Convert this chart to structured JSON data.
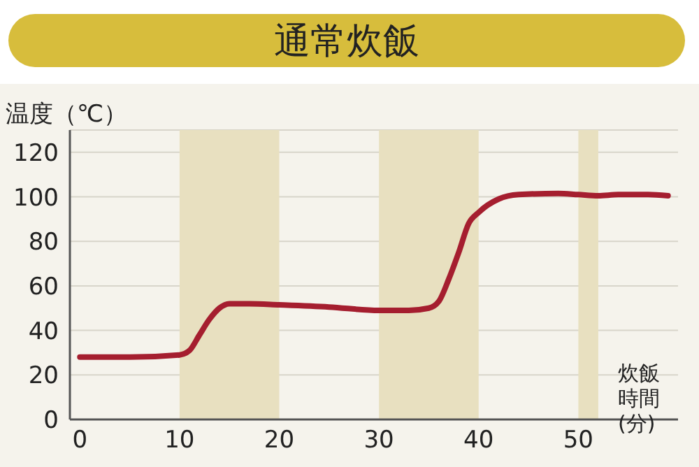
{
  "chart_data": {
    "type": "line",
    "title": "通常炊飯",
    "ylabel": "温度（℃）",
    "xlabel": "炊飯時間(分)",
    "x": [
      0,
      5,
      10,
      11,
      12,
      13,
      14,
      15,
      17,
      20,
      25,
      30,
      33,
      35,
      36,
      37,
      38,
      39,
      40,
      42,
      44,
      48,
      50,
      52,
      54,
      57,
      59
    ],
    "series": [
      {
        "color": "#a51e2f",
        "values": [
          28,
          28,
          29,
          31,
          38,
          45,
          50,
          52,
          52,
          51.5,
          50.5,
          49,
          49,
          50,
          53,
          63,
          75,
          88,
          93,
          99,
          101,
          101.5,
          101,
          100.5,
          101,
          101,
          100.5
        ]
      }
    ],
    "xlim": [
      -1,
      60
    ],
    "xticks": [
      0,
      10,
      20,
      30,
      40,
      50
    ],
    "ylim": [
      0,
      130
    ],
    "yticks": [
      0,
      20,
      40,
      60,
      80,
      100,
      120
    ],
    "bands": [
      {
        "axis": "x",
        "from": 10,
        "to": 20,
        "color": "#e8e0c0"
      },
      {
        "axis": "x",
        "from": 30,
        "to": 40,
        "color": "#e8e0c0"
      },
      {
        "axis": "x",
        "from": 50,
        "to": 52,
        "color": "#e8e0c0"
      }
    ],
    "grid": "y",
    "marker": "none",
    "line_style": "solid"
  }
}
